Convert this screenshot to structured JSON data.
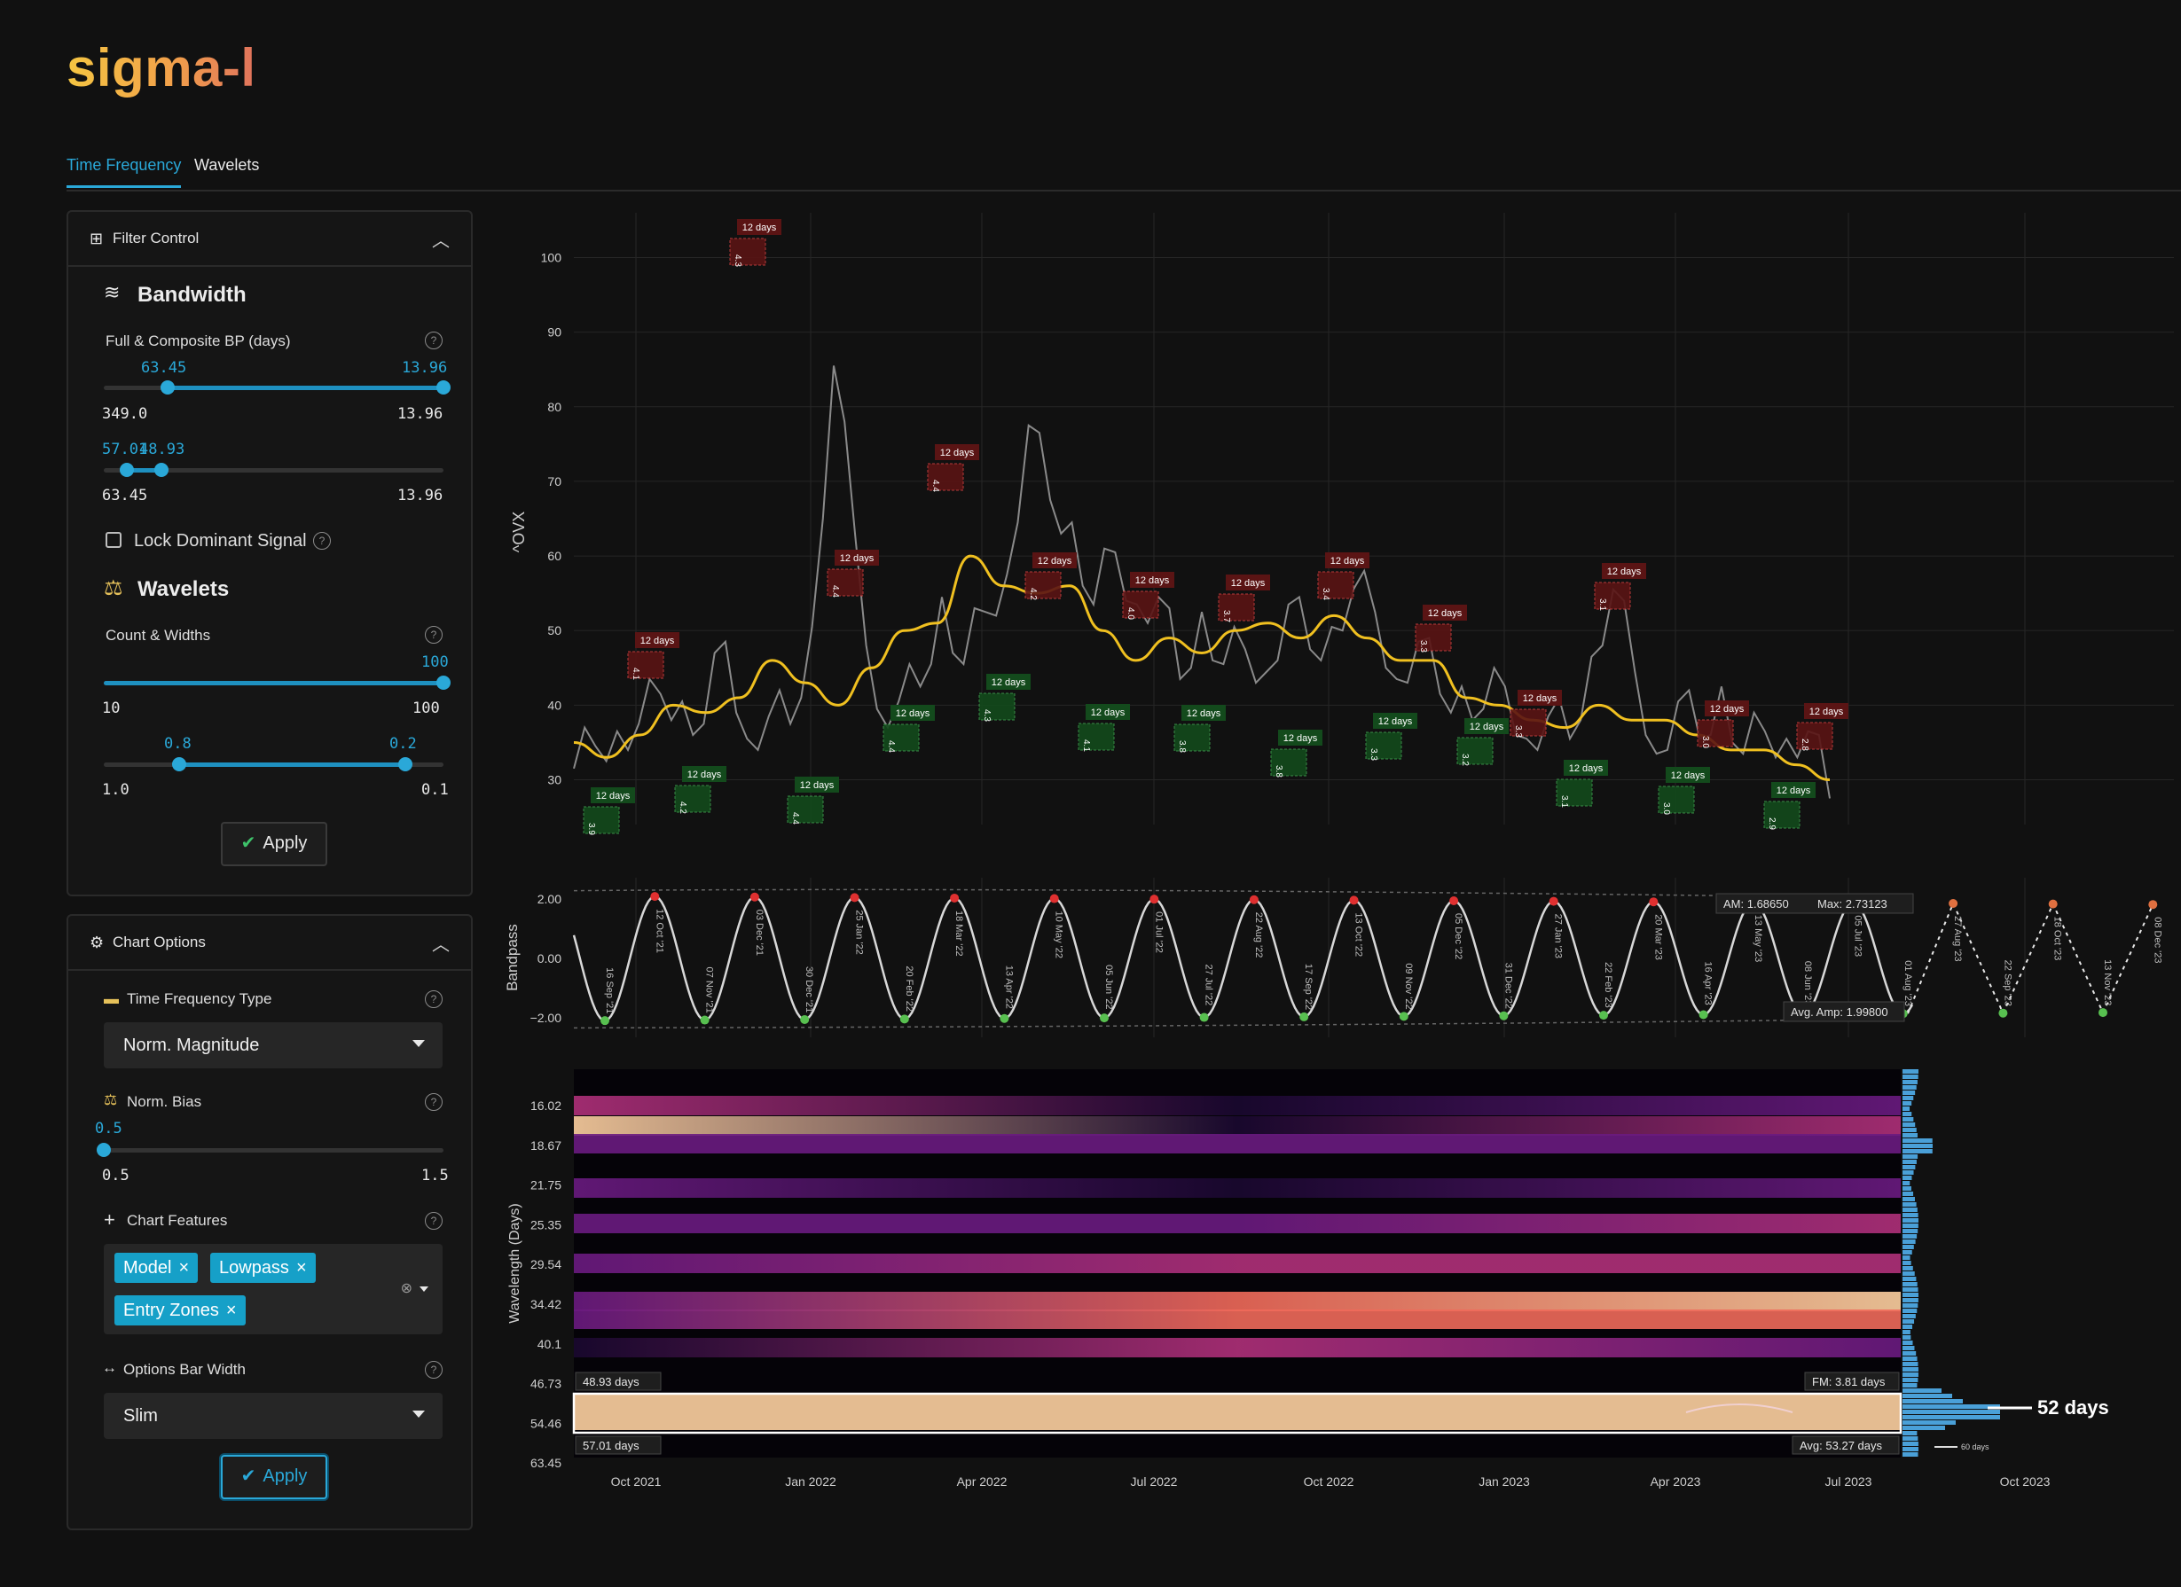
{
  "app": {
    "name": "sigma-l"
  },
  "tabs": [
    {
      "label": "Time Frequency",
      "active": true
    },
    {
      "label": "Wavelets",
      "active": false
    }
  ],
  "filter_control": {
    "title": "Filter Control",
    "bandwidth": {
      "title": "Bandwidth",
      "label": "Full & Composite BP (days)",
      "slider1": {
        "low": "63.45",
        "high": "13.96",
        "min": "349.0",
        "max": "13.96"
      },
      "slider2": {
        "low": "57.01",
        "high": "48.93",
        "min": "63.45",
        "max": "13.96"
      },
      "lock_label": "Lock Dominant Signal"
    },
    "wavelets": {
      "title": "Wavelets",
      "label": "Count & Widths",
      "slider1": {
        "high": "100",
        "min": "10",
        "max": "100"
      },
      "slider2": {
        "low": "0.8",
        "high": "0.2",
        "min": "1.0",
        "max": "0.1"
      }
    },
    "apply_label": "Apply"
  },
  "chart_options": {
    "title": "Chart Options",
    "tf_type": {
      "label": "Time Frequency Type",
      "value": "Norm. Magnitude"
    },
    "norm_bias": {
      "label": "Norm. Bias",
      "value": "0.5",
      "min": "0.5",
      "max": "1.5"
    },
    "features": {
      "label": "Chart Features",
      "chips": [
        "Model",
        "Lowpass",
        "Entry Zones"
      ]
    },
    "bar_width": {
      "label": "Options Bar Width",
      "value": "Slim"
    },
    "apply_label": "Apply"
  },
  "chart_data": [
    {
      "type": "line",
      "ylabel": "^OVX",
      "yticks": [
        30,
        40,
        50,
        60,
        70,
        80,
        90,
        100
      ],
      "ylim": [
        24,
        106
      ],
      "series": [
        {
          "values_start": "2021-09-01",
          "close_approx": [
            34,
            32,
            39,
            35,
            44,
            38,
            40,
            46,
            38,
            36,
            40,
            48,
            88,
            60,
            42,
            38,
            45,
            52,
            48,
            50,
            60,
            75,
            70,
            62,
            56,
            58,
            56,
            52,
            46,
            50,
            48,
            45,
            47,
            51,
            50,
            48,
            58,
            50,
            46,
            46,
            44,
            40,
            42,
            40,
            38,
            36,
            38,
            44,
            58,
            42,
            36,
            38,
            38,
            40,
            36,
            34,
            38,
            34,
            30
          ]
        },
        {
          "lowpass_approx": [
            35,
            33,
            36,
            40,
            39,
            41,
            46,
            43,
            40,
            45,
            50,
            51,
            60,
            56,
            55,
            56,
            50,
            46,
            49,
            47,
            50,
            51,
            49,
            52,
            49,
            46,
            46,
            41,
            40,
            38,
            37,
            40,
            38,
            38,
            36,
            34,
            34,
            32,
            30
          ]
        }
      ],
      "entry_zones_label": "12 days",
      "peak_zone_values": [
        "4.1",
        "4.3",
        "4.4",
        "4.4",
        "4.2",
        "4.0",
        "3.7",
        "3.4",
        "3.3",
        "3.3",
        "3.1",
        "3.0",
        "2.8"
      ],
      "trough_zone_values": [
        "3.9",
        "4.2",
        "4.4",
        "4.4",
        "4.3",
        "4.1",
        "3.8",
        "3.8",
        "3.3",
        "3.2",
        "3.1",
        "3.0",
        "2.9"
      ]
    },
    {
      "type": "line",
      "ylabel": "Bandpass",
      "yticks": [
        "2.00",
        "0.00",
        "−2.00"
      ],
      "troughs": [
        "16 Sep '21",
        "07 Nov '21",
        "30 Dec '21",
        "20 Feb '22",
        "13 Apr '22",
        "05 Jun '22",
        "27 Jul '22",
        "17 Sep '22",
        "09 Nov '22",
        "31 Dec '22",
        "22 Feb '23",
        "16 Apr '23",
        "08 Jun '23",
        "01 Aug '23",
        "22 Sep '23",
        "13 Nov '23"
      ],
      "peaks": [
        "12 Oct '21",
        "03 Dec '21",
        "25 Jan '22",
        "18 Mar '22",
        "10 May '22",
        "01 Jul '22",
        "22 Aug '22",
        "13 Oct '22",
        "05 Dec '22",
        "27 Jan '23",
        "20 Mar '23",
        "13 May '23",
        "05 Jul '23",
        "27 Aug '23",
        "18 Oct '23",
        "08 Dec '23"
      ],
      "am_label": "AM: 1.68650",
      "max_label": "Max: 2.73123",
      "avg_amp_label": "Avg. Amp: 1.99800"
    },
    {
      "type": "heatmap",
      "ylabel": "Wavelength (Days)",
      "yticks": [
        "16.02",
        "18.67",
        "21.75",
        "25.35",
        "29.54",
        "34.42",
        "40.1",
        "46.73",
        "54.46",
        "63.45"
      ],
      "xticks": [
        "Oct 2021",
        "Jan 2022",
        "Apr 2022",
        "Jul 2022",
        "Oct 2022",
        "Jan 2023",
        "Apr 2023",
        "Jul 2023",
        "Oct 2023"
      ],
      "band_high_label": "48.93 days",
      "band_low_label": "57.01 days",
      "fm_label": "FM: 3.81 days",
      "avg_label": "Avg: 53.27 days",
      "dominant_label": "52 days",
      "secondary_label": "60 days"
    }
  ]
}
